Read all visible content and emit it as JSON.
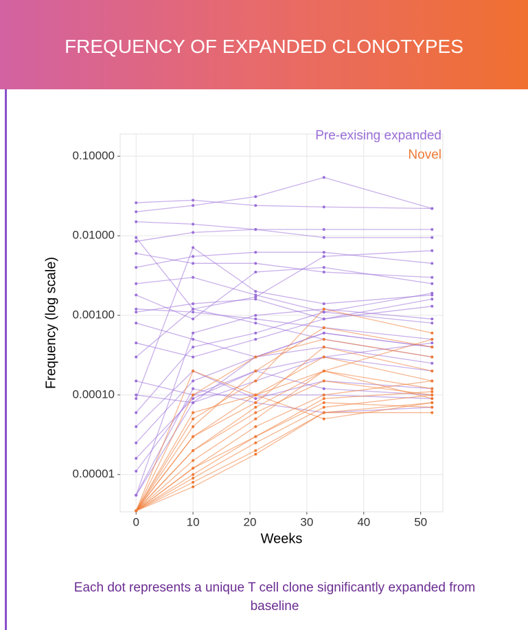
{
  "header": {
    "title": "FREQUENCY OF EXPANDED CLONOTYPES"
  },
  "chart_data": {
    "type": "line",
    "xlabel": "Weeks",
    "ylabel": "Frequency (log scale)",
    "x": [
      0,
      10,
      21,
      33,
      52
    ],
    "xlim": [
      -2.8,
      53.9
    ],
    "xticks": [
      0,
      10,
      20,
      30,
      40,
      50
    ],
    "ylim": [
      3.4e-06,
      0.19
    ],
    "yticks": [
      {
        "value": 1e-05,
        "label": "0.00001"
      },
      {
        "value": 0.0001,
        "label": "0.00010"
      },
      {
        "value": 0.001,
        "label": "0.00100"
      },
      {
        "value": 0.01,
        "label": "0.01000"
      },
      {
        "value": 0.1,
        "label": "0.10000"
      }
    ],
    "log_scale": true,
    "grid": true,
    "legend": "top-right",
    "series": [
      {
        "name": "Pre-exising expanded",
        "color": "#9a6fd8",
        "clones": [
          [
            0.026,
            0.028,
            0.024,
            0.023,
            0.022
          ],
          [
            0.02,
            0.024,
            0.031,
            0.054,
            0.022
          ],
          [
            0.015,
            0.014,
            0.012,
            0.012,
            0.012
          ],
          [
            0.0085,
            0.011,
            0.012,
            0.0095,
            0.0095
          ],
          [
            0.0095,
            0.0012,
            0.0017,
            0.0055,
            0.0065
          ],
          [
            0.006,
            0.0045,
            0.0045,
            0.0035,
            0.003
          ],
          [
            0.004,
            0.0055,
            0.0062,
            0.0062,
            0.0045
          ],
          [
            0.0025,
            0.003,
            0.0018,
            0.0011,
            0.0019
          ],
          [
            0.0018,
            0.0009,
            0.0035,
            0.004,
            0.0025
          ],
          [
            0.0011,
            0.0014,
            0.0016,
            0.0009,
            0.0013
          ],
          [
            0.0008,
            0.0005,
            0.0003,
            0.0006,
            0.0004
          ],
          [
            0.00045,
            0.0003,
            0.0005,
            0.0009,
            0.0016
          ],
          [
            0.0003,
            0.0012,
            0.0008,
            0.0005,
            0.0003
          ],
          [
            0.00015,
            0.0001,
            0.0002,
            0.0003,
            0.0002
          ],
          [
            0.0001,
            8e-05,
            0.00015,
            0.0003,
            0.00045
          ],
          [
            6e-05,
            0.0004,
            0.0006,
            0.0011,
            0.0008
          ],
          [
            4e-05,
            0.0002,
            9e-05,
            0.00015,
            0.00012
          ],
          [
            2.5e-05,
            0.00015,
            0.0003,
            0.0004,
            0.00025
          ],
          [
            1.6e-05,
            9e-05,
            0.0002,
            0.00012,
            0.0001
          ],
          [
            1.1e-05,
            0.0001,
            0.0001,
            0.0001,
            9e-05
          ],
          [
            5.5e-06,
            0.0006,
            0.001,
            0.0012,
            0.0009
          ],
          [
            5.5e-06,
            8e-05,
            0.0003,
            0.0006,
            0.0004
          ],
          [
            5.5e-06,
            0.00012,
            8e-05,
            6e-05,
            7e-05
          ],
          [
            9e-05,
            0.0071,
            0.002,
            0.0014,
            0.0018
          ],
          [
            0.0012,
            0.0011,
            0.0009,
            0.0007,
            0.0005
          ]
        ]
      },
      {
        "name": "Novel",
        "color": "#ef7a35",
        "clones": [
          [
            3.5e-06,
            2e-05,
            6e-05,
            0.00015,
            0.0001
          ],
          [
            3.5e-06,
            1e-05,
            3e-05,
            8e-05,
            7e-05
          ],
          [
            3.5e-06,
            8e-06,
            2e-05,
            6e-05,
            6e-05
          ],
          [
            3.5e-06,
            1.5e-05,
            5e-05,
            0.0002,
            0.00012
          ],
          [
            3.5e-06,
            0.0001,
            0.0003,
            0.0005,
            0.0003
          ],
          [
            3.5e-06,
            5e-05,
            0.00015,
            0.0012,
            0.0006
          ],
          [
            3.5e-06,
            1.2e-05,
            4e-05,
            0.0001,
            0.00015
          ],
          [
            3.5e-06,
            3e-05,
            8e-05,
            0.0004,
            0.0002
          ],
          [
            3.5e-06,
            9e-06,
            2.5e-05,
            7e-05,
            0.0001
          ],
          [
            3.5e-06,
            2e-05,
            7e-05,
            0.0002,
            9e-05
          ],
          [
            3.5e-06,
            0.0002,
            0.0001,
            5e-05,
            8e-05
          ],
          [
            3.5e-06,
            4e-05,
            0.0002,
            0.0007,
            0.0004
          ],
          [
            3.5e-06,
            7e-06,
            1.8e-05,
            6e-05,
            8e-05
          ],
          [
            3.5e-06,
            1.2e-05,
            3e-05,
            9e-05,
            0.00011
          ],
          [
            3.5e-06,
            3e-05,
            0.0001,
            0.0003,
            0.00015
          ],
          [
            3.5e-06,
            6e-05,
            0.0001,
            0.0002,
            0.0005
          ]
        ]
      }
    ]
  },
  "footer": {
    "note": "Each dot represents a unique T cell clone significantly expanded from baseline"
  }
}
